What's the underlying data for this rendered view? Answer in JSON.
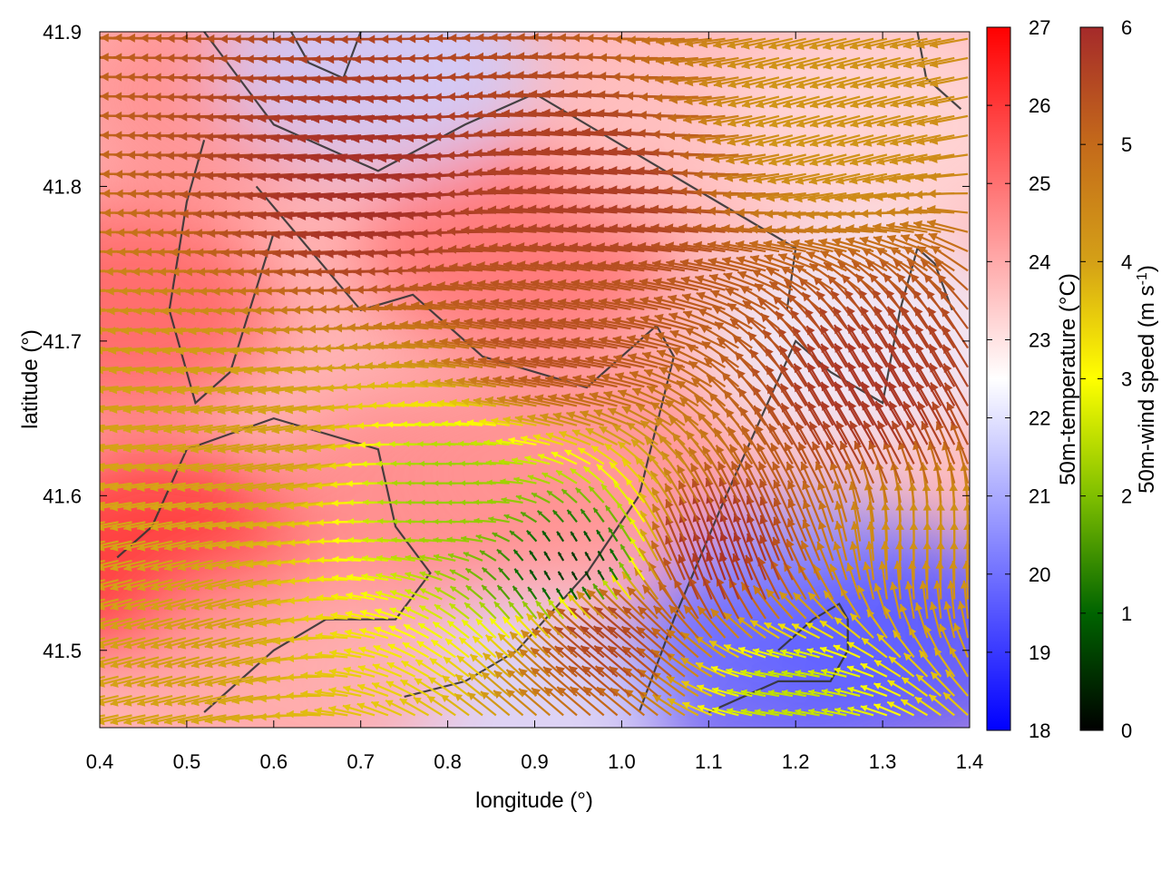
{
  "chart_data": {
    "type": "heatmap",
    "title": "",
    "xlabel": "longitude (°)",
    "ylabel": "latitude (°)",
    "xlim": [
      0.4,
      1.4
    ],
    "ylim": [
      41.45,
      41.9
    ],
    "x_ticks": [
      0.4,
      0.5,
      0.6,
      0.7,
      0.8,
      0.9,
      1.0,
      1.1,
      1.2,
      1.3,
      1.4
    ],
    "x_tick_labels": [
      "0.4",
      "0.5",
      "0.6",
      "0.7",
      "0.8",
      "0.9",
      "1.0",
      "1.1",
      "1.2",
      "1.3",
      "1.4"
    ],
    "y_ticks": [
      41.5,
      41.6,
      41.7,
      41.8,
      41.9
    ],
    "y_tick_labels": [
      "41.5",
      "41.6",
      "41.7",
      "41.8",
      "41.9"
    ],
    "grid": false,
    "layers": [
      {
        "kind": "color_field",
        "variable": "50m-temperature"
      },
      {
        "kind": "vector_field",
        "variable": "50m-wind",
        "color_by": "50m-wind speed"
      },
      {
        "kind": "contour_lines",
        "color": "#333333"
      }
    ],
    "colorbars": [
      {
        "label": "50m-temperature (°C)",
        "range": [
          18,
          27
        ],
        "ticks": [
          18,
          19,
          20,
          21,
          22,
          23,
          24,
          25,
          26,
          27
        ],
        "tick_labels": [
          "18",
          "19",
          "20",
          "21",
          "22",
          "23",
          "24",
          "25",
          "26",
          "27"
        ],
        "colors": [
          "#0000ff",
          "#ffffff",
          "#ff0000"
        ]
      },
      {
        "label_parts": [
          "50m-wind speed (m s",
          "-1",
          ")"
        ],
        "range": [
          0,
          6
        ],
        "ticks": [
          0,
          1,
          2,
          3,
          4,
          5,
          6
        ],
        "tick_labels": [
          "0",
          "1",
          "2",
          "3",
          "4",
          "5",
          "6"
        ],
        "colors": [
          "#000000",
          "#006400",
          "#7fbf00",
          "#ffff00",
          "#d4a017",
          "#c46a1a",
          "#a52a2a"
        ]
      }
    ],
    "temperature_field": [
      {
        "lon": 0.47,
        "lat": 41.56,
        "value": 26.2
      },
      {
        "lon": 0.42,
        "lat": 41.72,
        "value": 25.3
      },
      {
        "lon": 0.55,
        "lat": 41.86,
        "value": 24.5
      },
      {
        "lon": 0.78,
        "lat": 41.6,
        "value": 24.6
      },
      {
        "lon": 0.88,
        "lat": 41.76,
        "value": 25.0
      },
      {
        "lon": 0.95,
        "lat": 41.62,
        "value": 24.4
      },
      {
        "lon": 1.1,
        "lat": 41.84,
        "value": 23.6
      },
      {
        "lon": 1.3,
        "lat": 41.84,
        "value": 23.2
      },
      {
        "lon": 0.72,
        "lat": 41.88,
        "value": 21.6
      },
      {
        "lon": 1.28,
        "lat": 41.7,
        "value": 22.2
      },
      {
        "lon": 1.22,
        "lat": 41.53,
        "value": 20.6
      },
      {
        "lon": 1.34,
        "lat": 41.5,
        "value": 19.5
      },
      {
        "lon": 1.16,
        "lat": 41.48,
        "value": 19.8
      },
      {
        "lon": 0.86,
        "lat": 41.46,
        "value": 21.8
      },
      {
        "lon": 0.62,
        "lat": 41.48,
        "value": 24.0
      }
    ],
    "wind_flow": [
      {
        "lon": 0.75,
        "lat": 41.8,
        "dir_deg": 185,
        "speed": 5.9
      },
      {
        "lon": 1.0,
        "lat": 41.8,
        "dir_deg": 175,
        "speed": 5.7
      },
      {
        "lon": 0.95,
        "lat": 41.7,
        "dir_deg": 170,
        "speed": 5.4
      },
      {
        "lon": 1.25,
        "lat": 41.85,
        "dir_deg": 195,
        "speed": 4.2
      },
      {
        "lon": 0.6,
        "lat": 41.63,
        "dir_deg": 190,
        "speed": 4.0
      },
      {
        "lon": 0.82,
        "lat": 41.6,
        "dir_deg": 180,
        "speed": 2.2
      },
      {
        "lon": 0.95,
        "lat": 41.55,
        "dir_deg": 120,
        "speed": 0.5
      },
      {
        "lon": 1.0,
        "lat": 41.5,
        "dir_deg": 140,
        "speed": 5.6
      },
      {
        "lon": 1.12,
        "lat": 41.55,
        "dir_deg": 110,
        "speed": 5.9
      },
      {
        "lon": 1.3,
        "lat": 41.65,
        "dir_deg": 120,
        "speed": 5.8
      },
      {
        "lon": 1.36,
        "lat": 41.56,
        "dir_deg": 90,
        "speed": 4.3
      },
      {
        "lon": 1.2,
        "lat": 41.47,
        "dir_deg": 170,
        "speed": 2.5
      },
      {
        "lon": 0.5,
        "lat": 41.52,
        "dir_deg": 195,
        "speed": 4.0
      }
    ]
  }
}
